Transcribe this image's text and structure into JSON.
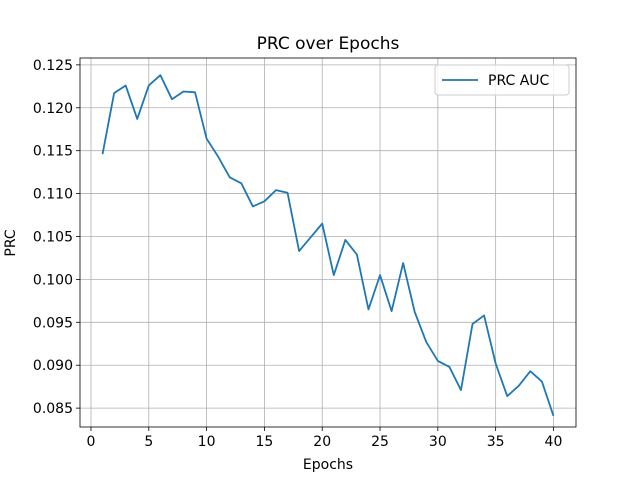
{
  "chart_data": {
    "type": "line",
    "title": "PRC over Epochs",
    "xlabel": "Epochs",
    "ylabel": "PRC",
    "xlim": [
      -0.95,
      41.95
    ],
    "ylim": [
      0.0828,
      0.1258
    ],
    "xticks": [
      0,
      5,
      10,
      15,
      20,
      25,
      30,
      35,
      40
    ],
    "yticks": [
      0.085,
      0.09,
      0.095,
      0.1,
      0.105,
      0.11,
      0.115,
      0.12,
      0.125
    ],
    "ytick_labels": [
      "0.085",
      "0.090",
      "0.095",
      "0.100",
      "0.105",
      "0.110",
      "0.115",
      "0.120",
      "0.125"
    ],
    "grid": true,
    "legend_position": "top-right",
    "series": [
      {
        "name": "PRC AUC",
        "color": "#1f77b4",
        "x": [
          1,
          2,
          3,
          4,
          5,
          6,
          7,
          8,
          9,
          10,
          11,
          12,
          13,
          14,
          15,
          16,
          17,
          18,
          19,
          20,
          21,
          22,
          23,
          24,
          25,
          26,
          27,
          28,
          29,
          30,
          31,
          32,
          33,
          34,
          35,
          36,
          37,
          38,
          39,
          40
        ],
        "values": [
          0.1146,
          0.1217,
          0.1226,
          0.1187,
          0.1226,
          0.1238,
          0.121,
          0.1219,
          0.1218,
          0.1164,
          0.1143,
          0.1119,
          0.1112,
          0.1085,
          0.1091,
          0.1104,
          0.1101,
          0.1033,
          0.1049,
          0.1065,
          0.1005,
          0.1046,
          0.1029,
          0.0965,
          0.1005,
          0.0963,
          0.1019,
          0.0962,
          0.0927,
          0.0905,
          0.0898,
          0.0871,
          0.0948,
          0.0958,
          0.0902,
          0.0864,
          0.0876,
          0.0893,
          0.0881,
          0.0841
        ]
      }
    ]
  }
}
